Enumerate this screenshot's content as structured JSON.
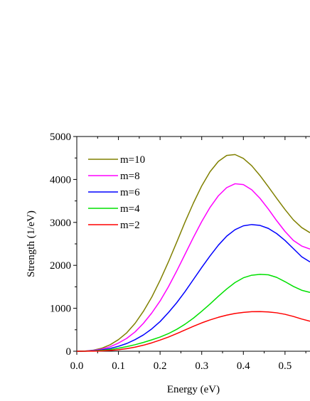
{
  "chart_data": {
    "type": "line",
    "xlabel": "Energy (eV)",
    "ylabel": "Strength (1/eV)",
    "xlim": [
      0.0,
      0.56
    ],
    "ylim": [
      0,
      5000
    ],
    "xticks": [
      "0.0",
      "0.1",
      "0.2",
      "0.3",
      "0.4",
      "0.5"
    ],
    "xtick_values": [
      0.0,
      0.1,
      0.2,
      0.3,
      0.4,
      0.5
    ],
    "yticks": [
      "0",
      "1000",
      "2000",
      "3000",
      "4000",
      "5000"
    ],
    "ytick_values": [
      0,
      1000,
      2000,
      3000,
      4000,
      5000
    ],
    "grid": false,
    "legend_position": "top-left",
    "x": [
      0.0,
      0.02,
      0.04,
      0.06,
      0.08,
      0.1,
      0.12,
      0.14,
      0.16,
      0.18,
      0.2,
      0.22,
      0.24,
      0.26,
      0.28,
      0.3,
      0.32,
      0.34,
      0.36,
      0.38,
      0.4,
      0.42,
      0.44,
      0.46,
      0.48,
      0.5,
      0.52,
      0.54,
      0.56
    ],
    "series": [
      {
        "name": "m=10",
        "color": "#808000",
        "values": [
          0,
          5,
          25,
          70,
          150,
          270,
          430,
          650,
          930,
          1260,
          1650,
          2080,
          2540,
          3010,
          3450,
          3850,
          4180,
          4420,
          4560,
          4580,
          4490,
          4320,
          4090,
          3830,
          3560,
          3300,
          3060,
          2880,
          2760
        ]
      },
      {
        "name": "m=8",
        "color": "#ff00ff",
        "values": [
          0,
          4,
          20,
          50,
          105,
          190,
          300,
          450,
          650,
          890,
          1170,
          1500,
          1870,
          2260,
          2650,
          3020,
          3350,
          3620,
          3810,
          3900,
          3880,
          3760,
          3560,
          3310,
          3040,
          2790,
          2580,
          2450,
          2380
        ]
      },
      {
        "name": "m=6",
        "color": "#0000ff",
        "values": [
          0,
          2,
          12,
          32,
          65,
          115,
          180,
          270,
          380,
          520,
          690,
          900,
          1130,
          1390,
          1670,
          1950,
          2220,
          2470,
          2680,
          2830,
          2920,
          2950,
          2930,
          2860,
          2740,
          2580,
          2390,
          2200,
          2080
        ]
      },
      {
        "name": "m=4",
        "color": "#00e000",
        "values": [
          0,
          2,
          8,
          20,
          40,
          70,
          108,
          152,
          205,
          265,
          330,
          410,
          510,
          630,
          770,
          930,
          1100,
          1280,
          1450,
          1600,
          1710,
          1770,
          1790,
          1780,
          1720,
          1620,
          1510,
          1420,
          1370
        ]
      },
      {
        "name": "m=2",
        "color": "#ff0000",
        "values": [
          0,
          1,
          3,
          8,
          18,
          35,
          60,
          95,
          140,
          195,
          260,
          330,
          410,
          495,
          580,
          660,
          730,
          790,
          840,
          880,
          905,
          920,
          922,
          915,
          895,
          860,
          810,
          750,
          700
        ]
      }
    ]
  }
}
